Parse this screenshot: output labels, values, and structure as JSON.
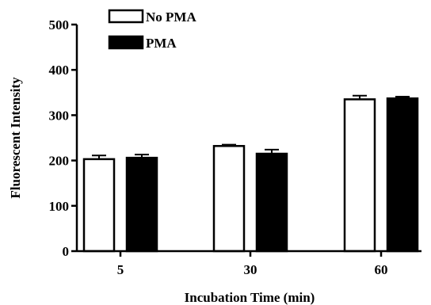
{
  "chart_data": {
    "type": "bar",
    "xlabel": "Incubation Time (min)",
    "ylabel": "Fluorescent Intensity",
    "categories": [
      "5",
      "30",
      "60"
    ],
    "ylim": [
      0,
      500
    ],
    "yticks": [
      "0",
      "100",
      "200",
      "300",
      "400",
      "500"
    ],
    "legend_position": "top-left",
    "grid": false,
    "series": [
      {
        "name": "No PMA",
        "fill": "#ffffff",
        "stroke": "#000000",
        "values": [
          203,
          232,
          335
        ],
        "errors": [
          8,
          3,
          8
        ]
      },
      {
        "name": "PMA",
        "fill": "#000000",
        "stroke": "#000000",
        "values": [
          206,
          215,
          337
        ],
        "errors": [
          7,
          9,
          4
        ]
      }
    ]
  }
}
